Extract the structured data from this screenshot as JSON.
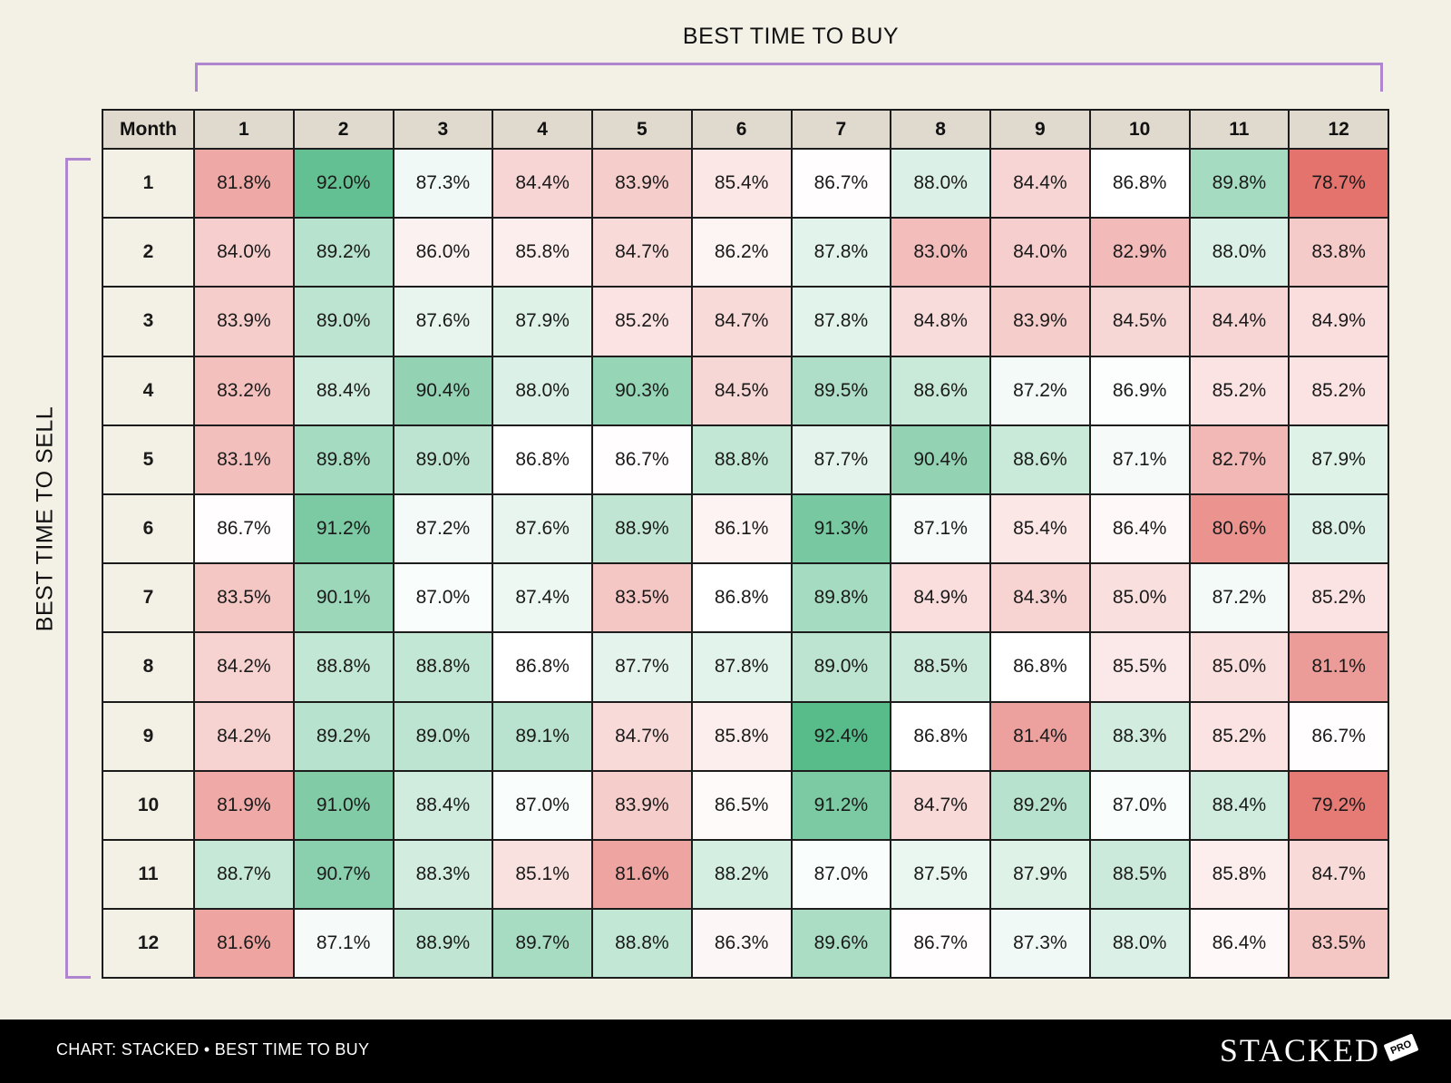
{
  "chart_data": {
    "type": "heatmap",
    "title_x": "BEST TIME TO BUY",
    "title_y": "BEST TIME TO SELL",
    "corner_label": "Month",
    "columns": [
      "1",
      "2",
      "3",
      "4",
      "5",
      "6",
      "7",
      "8",
      "9",
      "10",
      "11",
      "12"
    ],
    "rows": [
      "1",
      "2",
      "3",
      "4",
      "5",
      "6",
      "7",
      "8",
      "9",
      "10",
      "11",
      "12"
    ],
    "values": [
      [
        81.8,
        92.0,
        87.3,
        84.4,
        83.9,
        85.4,
        86.7,
        88.0,
        84.4,
        86.8,
        89.8,
        78.7
      ],
      [
        84.0,
        89.2,
        86.0,
        85.8,
        84.7,
        86.2,
        87.8,
        83.0,
        84.0,
        82.9,
        88.0,
        83.8
      ],
      [
        83.9,
        89.0,
        87.6,
        87.9,
        85.2,
        84.7,
        87.8,
        84.8,
        83.9,
        84.5,
        84.4,
        84.9
      ],
      [
        83.2,
        88.4,
        90.4,
        88.0,
        90.3,
        84.5,
        89.5,
        88.6,
        87.2,
        86.9,
        85.2,
        85.2
      ],
      [
        83.1,
        89.8,
        89.0,
        86.8,
        86.7,
        88.8,
        87.7,
        90.4,
        88.6,
        87.1,
        82.7,
        87.9
      ],
      [
        86.7,
        91.2,
        87.2,
        87.6,
        88.9,
        86.1,
        91.3,
        87.1,
        85.4,
        86.4,
        80.6,
        88.0
      ],
      [
        83.5,
        90.1,
        87.0,
        87.4,
        83.5,
        86.8,
        89.8,
        84.9,
        84.3,
        85.0,
        87.2,
        85.2
      ],
      [
        84.2,
        88.8,
        88.8,
        86.8,
        87.7,
        87.8,
        89.0,
        88.5,
        86.8,
        85.5,
        85.0,
        81.1
      ],
      [
        84.2,
        89.2,
        89.0,
        89.1,
        84.7,
        85.8,
        92.4,
        86.8,
        81.4,
        88.3,
        85.2,
        86.7
      ],
      [
        81.9,
        91.0,
        88.4,
        87.0,
        83.9,
        86.5,
        91.2,
        84.7,
        89.2,
        87.0,
        88.4,
        79.2
      ],
      [
        88.7,
        90.7,
        88.3,
        85.1,
        81.6,
        88.2,
        87.0,
        87.5,
        87.9,
        88.5,
        85.8,
        84.7
      ],
      [
        81.6,
        87.1,
        88.9,
        89.7,
        88.8,
        86.3,
        89.6,
        86.7,
        87.3,
        88.0,
        86.4,
        83.5
      ]
    ],
    "value_suffix": "%",
    "color_scale": {
      "low": "#e4726d",
      "mid": "#ffffff",
      "high": "#57bb8a",
      "min": 78.7,
      "mid_value": 86.8,
      "max": 92.4
    },
    "legend": "none"
  },
  "footer": {
    "source": "CHART: STACKED • BEST TIME TO BUY",
    "brand": "STACKED",
    "brand_tag": "PRO"
  }
}
